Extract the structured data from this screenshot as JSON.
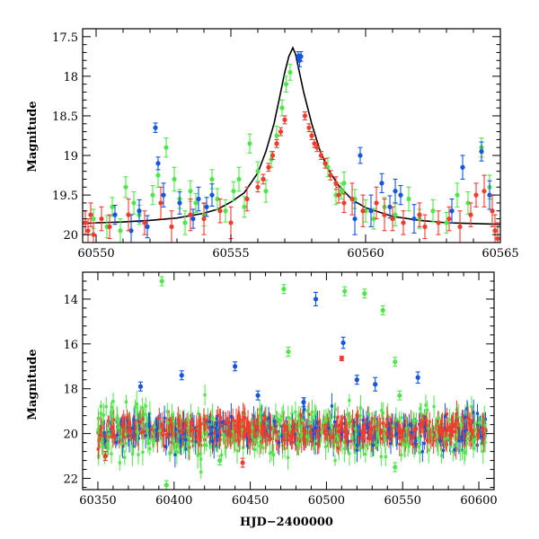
{
  "colors": {
    "green": "#4fe64a",
    "blue": "#1455e0",
    "red": "#f03c2d",
    "model": "#000000"
  },
  "chart_data": [
    {
      "type": "scatter",
      "panel": "top",
      "xlabel": "",
      "ylabel": "Magnitude",
      "xlim": [
        60549.5,
        60565
      ],
      "ylim": [
        20.1,
        17.4
      ],
      "y_inverted": true,
      "grid": false,
      "legend": "none",
      "x_ticks": [
        60550,
        60555,
        60560,
        60565
      ],
      "y_ticks": [
        17.5,
        18,
        18.5,
        19,
        19.5,
        20
      ],
      "model_curve": {
        "name": "",
        "x": [
          60549.5,
          60550,
          60551,
          60552,
          60553,
          60554,
          60554.5,
          60555,
          60555.5,
          60556,
          60556.3,
          60556.6,
          60556.8,
          60557,
          60557.15,
          60557.3,
          60557.4,
          60557.5,
          60557.7,
          60558,
          60558.3,
          60558.6,
          60559,
          60559.5,
          60560,
          60561,
          60562,
          60563,
          60564,
          60565
        ],
        "y": [
          19.86,
          19.85,
          19.84,
          19.82,
          19.79,
          19.73,
          19.68,
          19.59,
          19.47,
          19.22,
          18.95,
          18.6,
          18.28,
          17.95,
          17.75,
          17.64,
          17.72,
          17.88,
          18.2,
          18.6,
          18.93,
          19.17,
          19.38,
          19.56,
          19.66,
          19.77,
          19.82,
          19.85,
          19.86,
          19.87
        ]
      },
      "series": [
        {
          "color": "green",
          "x": [
            60549.9,
            60550.4,
            60550.6,
            60550.9,
            60551.1,
            60551.4,
            60551.6,
            60552.1,
            60552.3,
            60552.6,
            60552.9,
            60553.1,
            60553.3,
            60553.5,
            60553.7,
            60554.0,
            60554.3,
            60554.5,
            60554.8,
            60555.1,
            60555.3,
            60555.5,
            60555.7,
            60556.0,
            60556.3,
            60556.5,
            60556.7,
            60556.9,
            60557.05,
            60557.2,
            60558.6,
            60558.9,
            60559.1,
            60559.2,
            60559.6,
            60560.0,
            60560.3,
            60560.7,
            60561.1,
            60561.6,
            60562.0,
            60562.5,
            60563.0,
            60563.4,
            60563.8,
            60564.3,
            60564.6
          ],
          "y": [
            19.8,
            19.9,
            19.65,
            19.95,
            19.4,
            19.6,
            19.75,
            19.5,
            19.25,
            18.9,
            19.3,
            19.55,
            19.85,
            19.45,
            19.6,
            19.75,
            19.3,
            19.55,
            19.7,
            19.45,
            19.3,
            19.65,
            18.85,
            19.2,
            19.45,
            19.05,
            18.75,
            18.4,
            18.1,
            17.95,
            19.15,
            19.5,
            19.45,
            19.35,
            19.55,
            19.7,
            19.8,
            19.65,
            19.75,
            19.55,
            19.8,
            19.7,
            19.85,
            19.5,
            19.6,
            18.9,
            19.4
          ],
          "err": [
            0.12,
            0.14,
            0.12,
            0.15,
            0.13,
            0.14,
            0.12,
            0.12,
            0.15,
            0.12,
            0.15,
            0.12,
            0.15,
            0.13,
            0.12,
            0.14,
            0.12,
            0.13,
            0.14,
            0.12,
            0.15,
            0.13,
            0.12,
            0.12,
            0.14,
            0.1,
            0.12,
            0.1,
            0.1,
            0.1,
            0.12,
            0.12,
            0.1,
            0.14,
            0.12,
            0.14,
            0.13,
            0.12,
            0.14,
            0.15,
            0.12,
            0.14,
            0.13,
            0.15,
            0.14,
            0.12,
            0.15
          ]
        },
        {
          "color": "blue",
          "x": [
            60550.7,
            60551.3,
            60551.6,
            60551.9,
            60552.2,
            60552.3,
            60552.5,
            60553.1,
            60553.6,
            60553.8,
            60554.1,
            60554.3,
            60557.5,
            60557.55,
            60557.6,
            60559.6,
            60559.8,
            60560.2,
            60560.6,
            60560.9,
            60561.1,
            60561.3,
            60561.8,
            60563.2,
            60563.6,
            60564.3,
            60564.6
          ],
          "y": [
            19.75,
            19.95,
            19.7,
            19.9,
            18.65,
            19.1,
            19.5,
            19.6,
            19.8,
            19.55,
            19.65,
            19.5,
            17.75,
            17.8,
            17.75,
            19.8,
            19.0,
            19.7,
            19.35,
            19.65,
            19.45,
            19.5,
            19.8,
            19.7,
            19.15,
            18.95,
            19.5
          ],
          "err": [
            0.12,
            0.2,
            0.14,
            0.14,
            0.06,
            0.08,
            0.15,
            0.14,
            0.12,
            0.15,
            0.12,
            0.14,
            0.06,
            0.08,
            0.06,
            0.2,
            0.1,
            0.2,
            0.12,
            0.14,
            0.15,
            0.12,
            0.18,
            0.15,
            0.15,
            0.12,
            0.18
          ]
        },
        {
          "color": "red",
          "x": [
            60549.6,
            60549.7,
            60549.8,
            60549.9,
            60550.2,
            60550.5,
            60551.2,
            60551.8,
            60552.4,
            60552.8,
            60553.5,
            60554.0,
            60554.6,
            60555.0,
            60555.6,
            60556.0,
            60556.2,
            60556.4,
            60556.55,
            60556.7,
            60556.85,
            60557.0,
            60557.75,
            60557.9,
            60558.0,
            60558.1,
            60558.2,
            60558.35,
            60558.5,
            60558.7,
            60558.9,
            60559.0,
            60559.2,
            60559.5,
            60559.9,
            60560.4,
            60560.7,
            60561.0,
            60561.4,
            60562.0,
            60562.2,
            60562.7,
            60563.1,
            60563.5,
            60563.9,
            60564.1,
            60564.4,
            60564.7,
            60564.8,
            60564.9
          ],
          "y": [
            19.85,
            19.95,
            19.75,
            20.0,
            19.8,
            19.9,
            19.75,
            19.85,
            19.6,
            19.9,
            19.75,
            19.8,
            19.7,
            19.85,
            19.55,
            19.4,
            19.3,
            19.15,
            19.0,
            18.85,
            18.7,
            18.55,
            18.5,
            18.65,
            18.75,
            18.85,
            18.9,
            19.0,
            19.1,
            19.25,
            19.35,
            19.5,
            19.6,
            19.55,
            19.7,
            19.6,
            19.75,
            19.8,
            19.85,
            19.75,
            19.9,
            19.85,
            19.8,
            19.9,
            19.75,
            19.5,
            19.45,
            19.7,
            19.95,
            20.05
          ],
          "err": [
            0.15,
            0.15,
            0.15,
            0.15,
            0.15,
            0.15,
            0.2,
            0.15,
            0.2,
            0.2,
            0.2,
            0.2,
            0.15,
            0.2,
            0.15,
            0.06,
            0.06,
            0.05,
            0.05,
            0.05,
            0.05,
            0.05,
            0.05,
            0.05,
            0.05,
            0.05,
            0.05,
            0.05,
            0.06,
            0.06,
            0.08,
            0.1,
            0.12,
            0.2,
            0.2,
            0.2,
            0.2,
            0.15,
            0.15,
            0.15,
            0.15,
            0.15,
            0.15,
            0.2,
            0.15,
            0.15,
            0.2,
            0.2,
            0.2,
            0.2
          ]
        }
      ]
    },
    {
      "type": "scatter",
      "panel": "bottom",
      "xlabel": "HJD−2400000",
      "ylabel": "Magnitude",
      "xlim": [
        60340,
        60610
      ],
      "ylim": [
        22.5,
        12.8
      ],
      "y_inverted": true,
      "grid": false,
      "legend": "none",
      "x_ticks": [
        60350,
        60400,
        60450,
        60500,
        60550,
        60600
      ],
      "y_ticks": [
        14,
        16,
        18,
        20,
        22
      ],
      "series": [
        {
          "color": "green",
          "x": [
            60392,
            60472,
            60512,
            60525,
            60537,
            60545,
            60548,
            60475,
            60395,
            60430,
            60545
          ],
          "y": [
            13.2,
            13.55,
            13.65,
            13.75,
            14.5,
            16.8,
            18.3,
            16.35,
            22.3,
            21.2,
            21.5
          ],
          "err": [
            0.2,
            0.2,
            0.2,
            0.2,
            0.2,
            0.2,
            0.2,
            0.2,
            0.2,
            0.2,
            0.2
          ]
        },
        {
          "color": "blue",
          "x": [
            60493,
            60511,
            60532,
            60560,
            60378,
            60405,
            60440,
            60455,
            60485,
            60520
          ],
          "y": [
            14.0,
            15.95,
            17.8,
            17.5,
            17.9,
            17.4,
            17.0,
            18.3,
            18.6,
            17.6
          ],
          "err": [
            0.3,
            0.25,
            0.3,
            0.25,
            0.2,
            0.2,
            0.2,
            0.2,
            0.2,
            0.2
          ]
        },
        {
          "color": "red",
          "x": [
            60510,
            60355,
            60445
          ],
          "y": [
            16.65,
            21.0,
            21.3
          ],
          "err": [
            0.1,
            0.2,
            0.2
          ]
        }
      ],
      "dense_band": {
        "x_range": [
          60350,
          60605
        ],
        "y_center": 19.9,
        "y_spread": 0.9,
        "colors": [
          "green",
          "blue",
          "red"
        ]
      }
    }
  ]
}
